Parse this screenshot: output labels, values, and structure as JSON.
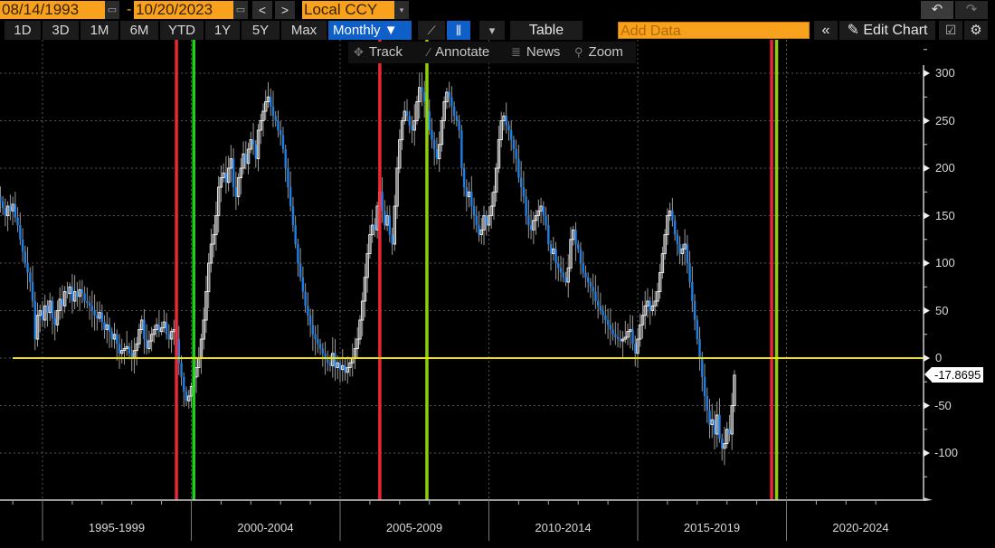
{
  "toolbar": {
    "start_date": "08/14/1993",
    "end_date": "10/20/2023",
    "date_separator": "-",
    "calendar_icon": "▭",
    "prev_label": "<",
    "next_label": ">",
    "currency": "Local CCY",
    "caret": "▾",
    "undo_icon": "↶",
    "redo_icon": "↷",
    "periods": [
      "1D",
      "3D",
      "1M",
      "6M",
      "YTD",
      "1Y",
      "5Y",
      "Max"
    ],
    "frequency": "Monthly ▼",
    "line_chart_icon": "⟋",
    "candle_icon": "⫼",
    "chart_type_caret": "▾",
    "table_label": "Table",
    "add_data_placeholder": "Add Data",
    "collapse_icon": "«",
    "edit_chart_label": "✎ Edit Chart",
    "annotate_icon": "☑",
    "settings_icon": "⚙"
  },
  "subtoolbar": {
    "track_icon": "✥",
    "track": "Track",
    "annotate_icon": "⁄",
    "annotate": "Annotate",
    "news_icon": "≣",
    "news": "News",
    "zoom_icon": "⚲",
    "zoom": "Zoom"
  },
  "colors": {
    "up_candle": "#e8e8e8",
    "down_candle": "#1e7fe6",
    "zero_line": "#f2e600",
    "red_marker": "#ff2a3a",
    "green_marker": "#22e022",
    "lime_marker": "#9be010",
    "orange": "#f8a11d",
    "blue_active": "#0f5fc9"
  },
  "last_price": "-17.8695",
  "chart_data": {
    "type": "candlestick",
    "frequency": "Monthly",
    "title": "",
    "xlabel": "",
    "ylabel": "",
    "ylim": [
      -150,
      325
    ],
    "xlim": [
      "1993-08",
      "2023-10"
    ],
    "y_ticks": [
      300,
      250,
      200,
      150,
      100,
      50,
      0,
      -50,
      -100
    ],
    "x_tick_labels": [
      "1995-1999",
      "2000-2004",
      "2005-2009",
      "2010-2014",
      "2015-2019",
      "2020-2024"
    ],
    "grid": "dotted",
    "horizontal_reference_line": {
      "value": 0,
      "color": "yellow"
    },
    "vertical_markers": [
      {
        "date": "1999-07",
        "color": "red"
      },
      {
        "date": "2000-02",
        "color": "green"
      },
      {
        "date": "2006-05",
        "color": "red"
      },
      {
        "date": "2007-12",
        "color": "lime"
      },
      {
        "date": "2019-07",
        "color": "red"
      },
      {
        "date": "2019-09",
        "color": "lime"
      }
    ],
    "last_value": -17.8695,
    "series_close_monthly": [
      165,
      158,
      150,
      160,
      155,
      162,
      148,
      140,
      125,
      112,
      100,
      90,
      80,
      60,
      20,
      45,
      50,
      40,
      55,
      48,
      60,
      42,
      35,
      50,
      62,
      55,
      70,
      68,
      75,
      60,
      70,
      65,
      72,
      68,
      60,
      58,
      55,
      50,
      45,
      42,
      48,
      38,
      30,
      35,
      28,
      20,
      25,
      15,
      5,
      8,
      10,
      12,
      5,
      0,
      8,
      15,
      30,
      40,
      20,
      10,
      18,
      25,
      30,
      35,
      28,
      32,
      38,
      25,
      20,
      28,
      30,
      20,
      -5,
      -20,
      -35,
      -45,
      -40,
      -30,
      -20,
      -10,
      0,
      20,
      40,
      70,
      100,
      120,
      130,
      150,
      180,
      190,
      195,
      185,
      200,
      210,
      180,
      170,
      190,
      200,
      215,
      205,
      220,
      230,
      225,
      210,
      240,
      250,
      260,
      270,
      275,
      265,
      255,
      250,
      240,
      235,
      220,
      200,
      180,
      160,
      140,
      120,
      100,
      85,
      70,
      55,
      45,
      35,
      25,
      20,
      15,
      10,
      5,
      0,
      -5,
      -8,
      5,
      -10,
      -5,
      -12,
      -8,
      -15,
      -10,
      -5,
      0,
      10,
      20,
      40,
      60,
      85,
      110,
      130,
      140,
      135,
      160,
      175,
      155,
      140,
      150,
      130,
      120,
      160,
      200,
      230,
      250,
      260,
      255,
      245,
      240,
      250,
      270,
      285,
      280,
      270,
      260,
      240,
      230,
      220,
      210,
      225,
      250,
      270,
      280,
      275,
      265,
      255,
      250,
      240,
      200,
      180,
      170,
      175,
      160,
      150,
      140,
      130,
      135,
      150,
      140,
      150,
      160,
      175,
      200,
      230,
      250,
      255,
      245,
      240,
      230,
      220,
      210,
      190,
      180,
      170,
      150,
      140,
      135,
      145,
      150,
      155,
      160,
      150,
      140,
      120,
      110,
      115,
      100,
      95,
      90,
      85,
      80,
      95,
      125,
      135,
      120,
      115,
      100,
      90,
      85,
      80,
      75,
      70,
      60,
      55,
      50,
      45,
      40,
      35,
      30,
      25,
      22,
      20,
      18,
      20,
      22,
      28,
      30,
      15,
      5,
      20,
      35,
      45,
      55,
      60,
      50,
      55,
      60,
      70,
      90,
      110,
      130,
      150,
      155,
      145,
      130,
      120,
      110,
      115,
      120,
      100,
      80,
      60,
      40,
      20,
      0,
      -20,
      -40,
      -55,
      -70,
      -65,
      -80,
      -60,
      -85,
      -95,
      -90,
      -75,
      -80,
      -50,
      -18
    ]
  }
}
